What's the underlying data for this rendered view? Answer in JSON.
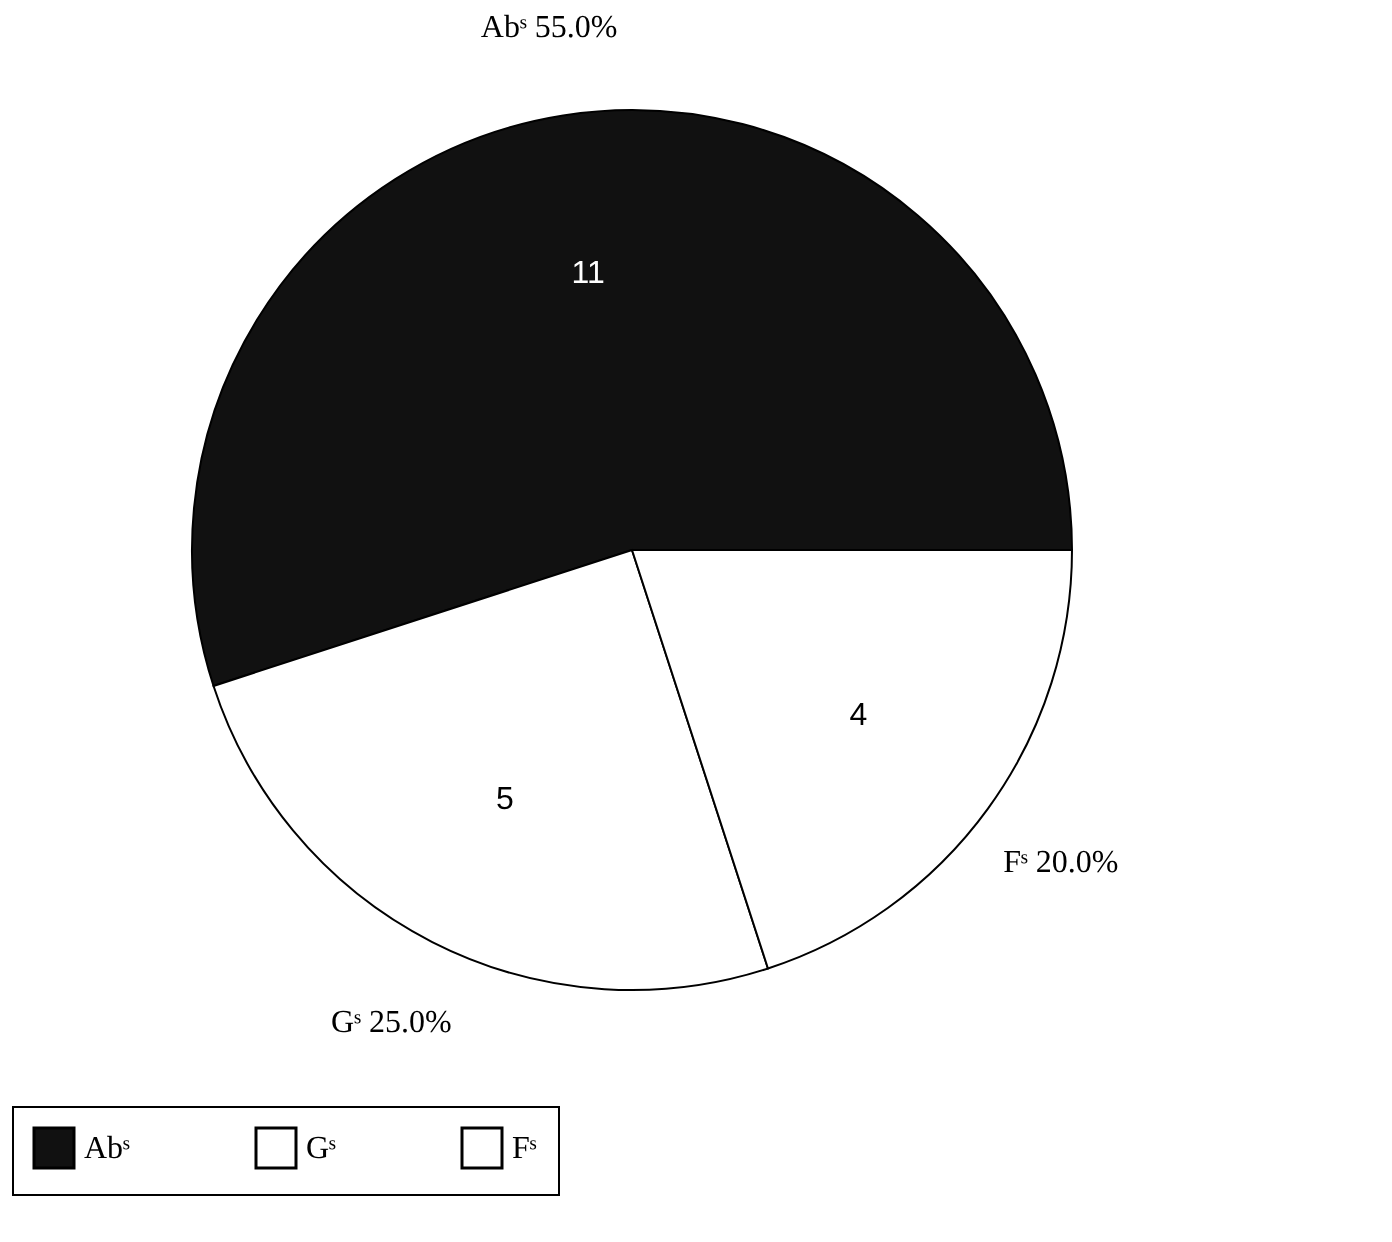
{
  "chart_data": {
    "type": "pie",
    "categories": [
      "Abˢ",
      "Gˢ",
      "Fˢ"
    ],
    "values": [
      11,
      5,
      4
    ],
    "colors": [
      "#111111",
      "#ffffff",
      "#ffffff"
    ],
    "data_labels": true,
    "annotations": [
      "55.0%",
      "25.0%",
      "20.0%"
    ],
    "legend": "bottom"
  }
}
